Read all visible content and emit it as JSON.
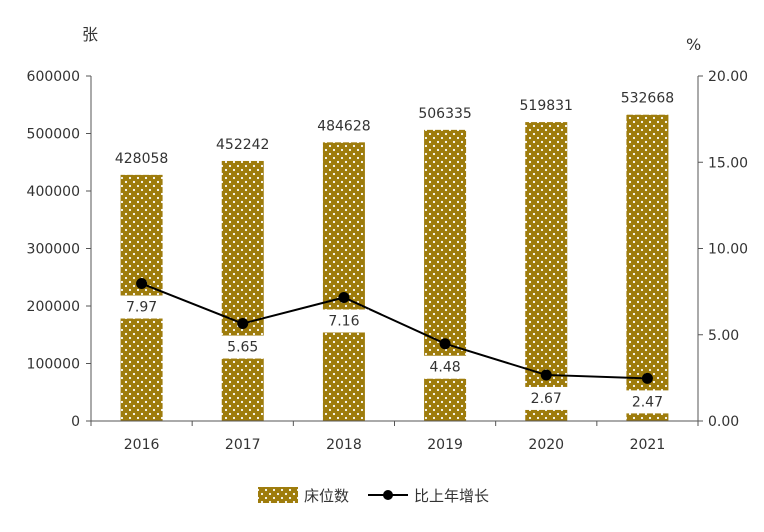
{
  "chart_data": {
    "type": "bar",
    "categories": [
      "2016",
      "2017",
      "2018",
      "2019",
      "2020",
      "2021"
    ],
    "series": [
      {
        "name": "床位数",
        "type": "bar",
        "axis": "left",
        "values": [
          428058,
          452242,
          484628,
          506335,
          519831,
          532668
        ],
        "labels": [
          "428058",
          "452242",
          "484628",
          "506335",
          "519831",
          "532668"
        ]
      },
      {
        "name": "比上年增长",
        "type": "line",
        "axis": "right",
        "values": [
          7.97,
          5.65,
          7.16,
          4.48,
          2.67,
          2.47
        ],
        "labels": [
          "7.97",
          "5.65",
          "7.16",
          "4.48",
          "2.67",
          "2.47"
        ]
      }
    ],
    "y_left": {
      "unit": "张",
      "min": 0,
      "max": 600000,
      "ticks": [
        "0",
        "100000",
        "200000",
        "300000",
        "400000",
        "500000",
        "600000"
      ]
    },
    "y_right": {
      "unit": "%",
      "min": 0,
      "max": 20,
      "ticks": [
        "0.00",
        "5.00",
        "10.00",
        "15.00",
        "20.00"
      ]
    },
    "legend_position": "bottom",
    "grid": false,
    "colors": {
      "bar": "#9e7c0c",
      "bar_dots": "#ffffff",
      "line": "#000000",
      "axis": "#555555"
    }
  }
}
